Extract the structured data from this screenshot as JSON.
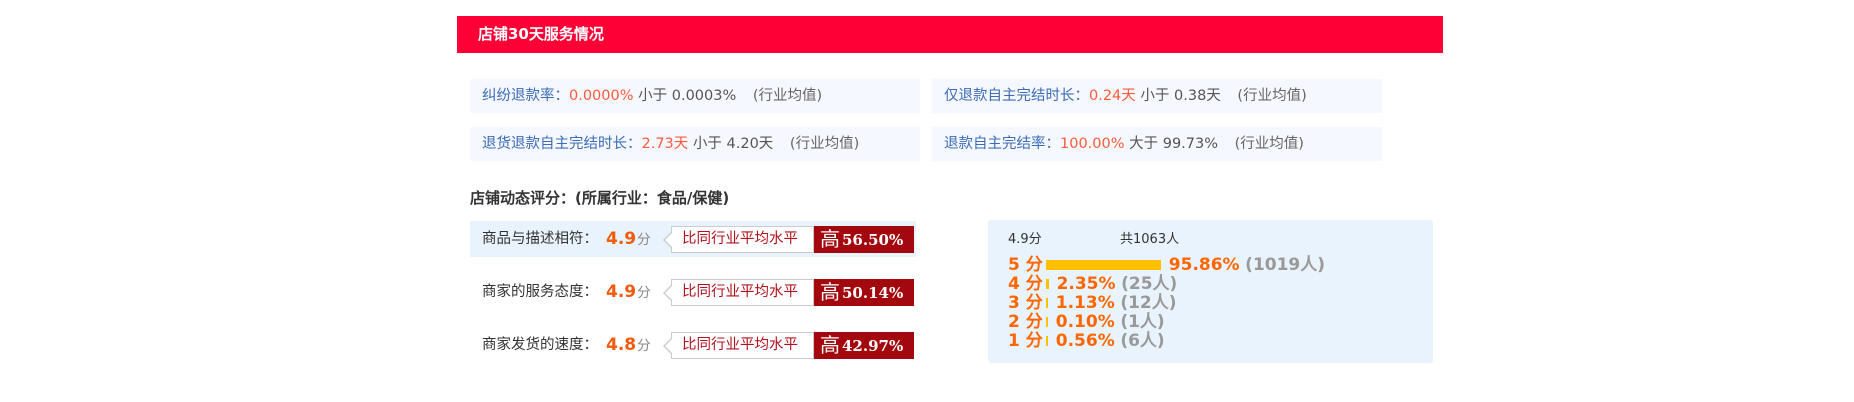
{
  "header": {
    "title": "店铺30天服务情况"
  },
  "metrics": [
    {
      "label": "纠纷退款率：",
      "value": "0.0000%",
      "compare": "小于 0.0003%",
      "avg": "(行业均值)"
    },
    {
      "label": "仅退款自主完结时长：",
      "value": "0.24天",
      "compare": "小于 0.38天",
      "avg": "(行业均值)"
    },
    {
      "label": "退货退款自主完结时长：",
      "value": "2.73天",
      "compare": "小于 4.20天",
      "avg": "(行业均值)"
    },
    {
      "label": "退款自主完结率：",
      "value": "100.00%",
      "compare": "大于 99.73%",
      "avg": "(行业均值)"
    }
  ],
  "dsr": {
    "title": "店铺动态评分：(所属行业：食品/保健)",
    "unit": "分",
    "compare_label": "比同行业平均水平",
    "rows": [
      {
        "name": "商品与描述相符：",
        "score": "4.9",
        "direction": "高",
        "percent": "56.50%"
      },
      {
        "name": "商家的服务态度：",
        "score": "4.9",
        "direction": "高",
        "percent": "50.14%"
      },
      {
        "name": "商家发货的速度：",
        "score": "4.8",
        "direction": "高",
        "percent": "42.97%"
      }
    ]
  },
  "distribution": {
    "average": "4.9分",
    "total": "共1063人",
    "bar_color": "#ffc000",
    "rows": [
      {
        "star": "5 分",
        "percent": "95.86%",
        "count": "(1019人)",
        "share": 95.86
      },
      {
        "star": "4 分",
        "percent": "2.35%",
        "count": "(25人)",
        "share": 2.35
      },
      {
        "star": "3 分",
        "percent": "1.13%",
        "count": "(12人)",
        "share": 1.13
      },
      {
        "star": "2 分",
        "percent": "0.10%",
        "count": "(1人)",
        "share": 0.1
      },
      {
        "star": "1 分",
        "percent": "0.56%",
        "count": "(6人)",
        "share": 0.56
      }
    ]
  },
  "colors": {
    "header": "#ff0036",
    "accent": "#ff5a3c",
    "score": "#f25a0d",
    "badge": "#a3080e"
  }
}
